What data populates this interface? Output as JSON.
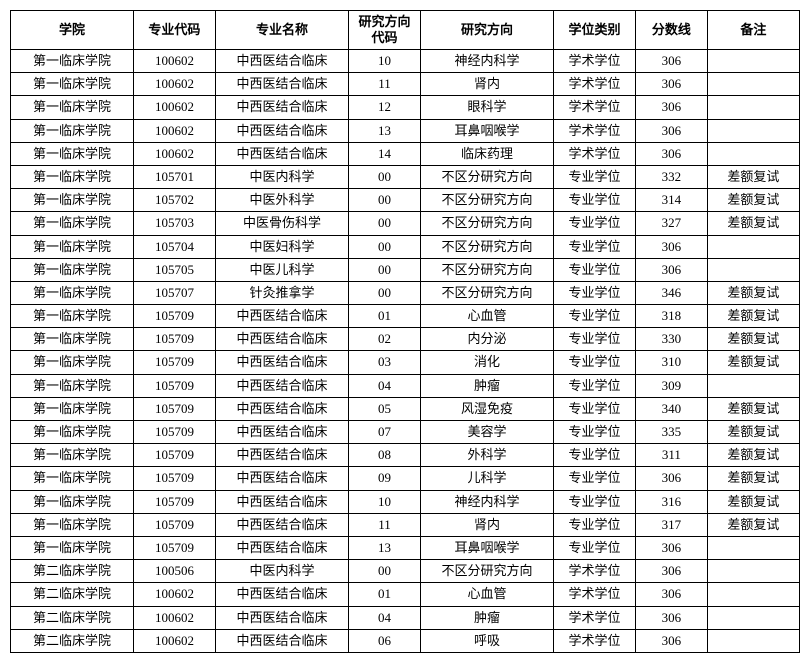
{
  "columns": [
    "学院",
    "专业代码",
    "专业名称",
    "研究方向\n代码",
    "研究方向",
    "学位类别",
    "分数线",
    "备注"
  ],
  "rows": [
    [
      "第一临床学院",
      "100602",
      "中西医结合临床",
      "10",
      "神经内科学",
      "学术学位",
      "306",
      ""
    ],
    [
      "第一临床学院",
      "100602",
      "中西医结合临床",
      "11",
      "肾内",
      "学术学位",
      "306",
      ""
    ],
    [
      "第一临床学院",
      "100602",
      "中西医结合临床",
      "12",
      "眼科学",
      "学术学位",
      "306",
      ""
    ],
    [
      "第一临床学院",
      "100602",
      "中西医结合临床",
      "13",
      "耳鼻咽喉学",
      "学术学位",
      "306",
      ""
    ],
    [
      "第一临床学院",
      "100602",
      "中西医结合临床",
      "14",
      "临床药理",
      "学术学位",
      "306",
      ""
    ],
    [
      "第一临床学院",
      "105701",
      "中医内科学",
      "00",
      "不区分研究方向",
      "专业学位",
      "332",
      "差额复试"
    ],
    [
      "第一临床学院",
      "105702",
      "中医外科学",
      "00",
      "不区分研究方向",
      "专业学位",
      "314",
      "差额复试"
    ],
    [
      "第一临床学院",
      "105703",
      "中医骨伤科学",
      "00",
      "不区分研究方向",
      "专业学位",
      "327",
      "差额复试"
    ],
    [
      "第一临床学院",
      "105704",
      "中医妇科学",
      "00",
      "不区分研究方向",
      "专业学位",
      "306",
      ""
    ],
    [
      "第一临床学院",
      "105705",
      "中医儿科学",
      "00",
      "不区分研究方向",
      "专业学位",
      "306",
      ""
    ],
    [
      "第一临床学院",
      "105707",
      "针灸推拿学",
      "00",
      "不区分研究方向",
      "专业学位",
      "346",
      "差额复试"
    ],
    [
      "第一临床学院",
      "105709",
      "中西医结合临床",
      "01",
      "心血管",
      "专业学位",
      "318",
      "差额复试"
    ],
    [
      "第一临床学院",
      "105709",
      "中西医结合临床",
      "02",
      "内分泌",
      "专业学位",
      "330",
      "差额复试"
    ],
    [
      "第一临床学院",
      "105709",
      "中西医结合临床",
      "03",
      "消化",
      "专业学位",
      "310",
      "差额复试"
    ],
    [
      "第一临床学院",
      "105709",
      "中西医结合临床",
      "04",
      "肿瘤",
      "专业学位",
      "309",
      ""
    ],
    [
      "第一临床学院",
      "105709",
      "中西医结合临床",
      "05",
      "风湿免疫",
      "专业学位",
      "340",
      "差额复试"
    ],
    [
      "第一临床学院",
      "105709",
      "中西医结合临床",
      "07",
      "美容学",
      "专业学位",
      "335",
      "差额复试"
    ],
    [
      "第一临床学院",
      "105709",
      "中西医结合临床",
      "08",
      "外科学",
      "专业学位",
      "311",
      "差额复试"
    ],
    [
      "第一临床学院",
      "105709",
      "中西医结合临床",
      "09",
      "儿科学",
      "专业学位",
      "306",
      "差额复试"
    ],
    [
      "第一临床学院",
      "105709",
      "中西医结合临床",
      "10",
      "神经内科学",
      "专业学位",
      "316",
      "差额复试"
    ],
    [
      "第一临床学院",
      "105709",
      "中西医结合临床",
      "11",
      "肾内",
      "专业学位",
      "317",
      "差额复试"
    ],
    [
      "第一临床学院",
      "105709",
      "中西医结合临床",
      "13",
      "耳鼻咽喉学",
      "专业学位",
      "306",
      ""
    ],
    [
      "第二临床学院",
      "100506",
      "中医内科学",
      "00",
      "不区分研究方向",
      "学术学位",
      "306",
      ""
    ],
    [
      "第二临床学院",
      "100602",
      "中西医结合临床",
      "01",
      "心血管",
      "学术学位",
      "306",
      ""
    ],
    [
      "第二临床学院",
      "100602",
      "中西医结合临床",
      "04",
      "肿瘤",
      "学术学位",
      "306",
      ""
    ],
    [
      "第二临床学院",
      "100602",
      "中西医结合临床",
      "06",
      "呼吸",
      "学术学位",
      "306",
      ""
    ]
  ]
}
